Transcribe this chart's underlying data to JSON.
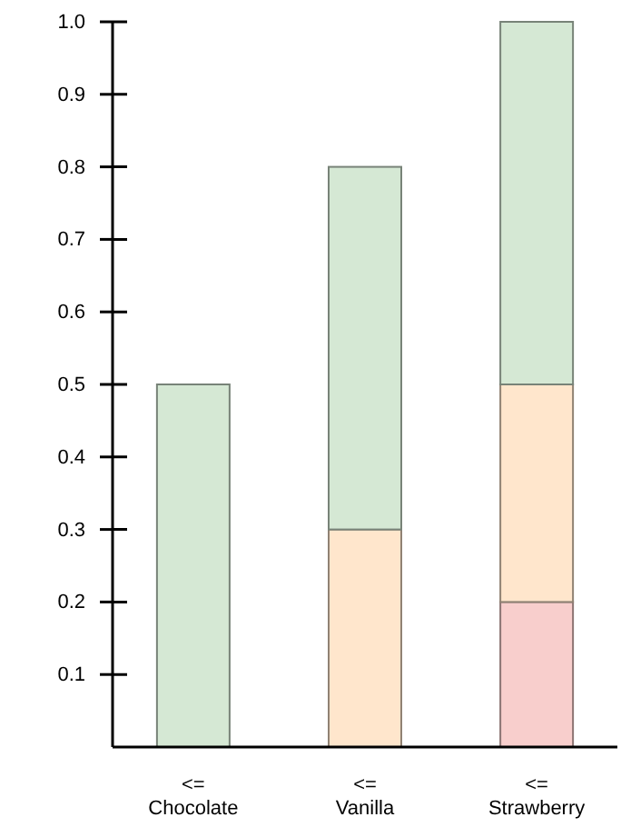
{
  "chart_data": {
    "type": "bar",
    "stacked": true,
    "categories": [
      "<=\nChocolate",
      "<=\nVanilla",
      "<=\nStrawberry"
    ],
    "series": [
      {
        "color": "#f8cecc",
        "values": [
          null,
          null,
          0.2
        ]
      },
      {
        "color": "#ffe6cc",
        "values": [
          null,
          0.3,
          0.3
        ]
      },
      {
        "color": "#d5e8d4",
        "values": [
          0.5,
          0.5,
          0.5
        ]
      }
    ],
    "ylim": [
      0,
      1
    ],
    "yticks": [
      0.1,
      0.2,
      0.3,
      0.4,
      0.5,
      0.6,
      0.7,
      0.8,
      0.9,
      {
        "value": 1,
        "label": "1.0"
      }
    ],
    "grid": false
  }
}
